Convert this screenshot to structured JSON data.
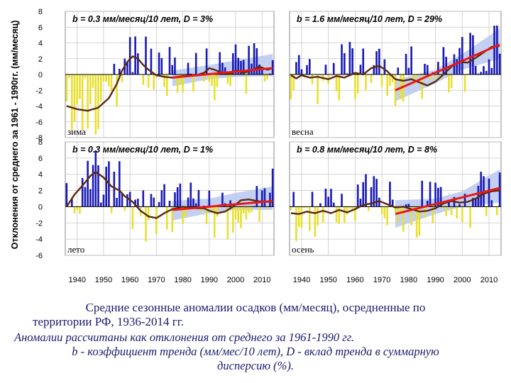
{
  "y_axis_label": "Отклонения от среднего за 1961 - 1990гг. (мм/месяц)",
  "colors": {
    "positive_bar": "#1a1ab4",
    "negative_bar": "#e8e030",
    "smooth_line": "#5a2a10",
    "trend_line": "#e81818",
    "confidence_band": "#b8c8f0",
    "grid": "#c8c8c8",
    "label_text": "#1a1a6e"
  },
  "chart_data": [
    {
      "type": "bar",
      "panel": "зима",
      "title": "b = 0.3 мм/месяц/10 лет, D = 3%",
      "season_label": "зима",
      "x_range": [
        1936,
        2014
      ],
      "ylim": [
        -8,
        8
      ],
      "yticks": [
        8,
        6,
        4,
        2,
        0,
        -2,
        -4,
        -6,
        -8
      ],
      "show_yticks": true,
      "xticks": [
        1940,
        1950,
        1960,
        1970,
        1980,
        1990,
        2000,
        2010
      ],
      "show_xticks": false,
      "smooth": [
        [
          1936,
          -4.0
        ],
        [
          1940,
          -4.4
        ],
        [
          1944,
          -4.6
        ],
        [
          1948,
          -4.2
        ],
        [
          1952,
          -3.0
        ],
        [
          1955,
          -1.2
        ],
        [
          1957,
          0.5
        ],
        [
          1959,
          1.6
        ],
        [
          1961,
          2.3
        ],
        [
          1963,
          2.0
        ],
        [
          1965,
          1.2
        ],
        [
          1967,
          0.6
        ],
        [
          1970,
          -0.1
        ],
        [
          1973,
          -0.3
        ],
        [
          1976,
          -0.4
        ],
        [
          1980,
          -0.2
        ],
        [
          1985,
          -0.1
        ],
        [
          1988,
          0.2
        ],
        [
          1990,
          0.8
        ],
        [
          1992,
          0.6
        ],
        [
          1995,
          0.2
        ],
        [
          1998,
          0.1
        ],
        [
          2000,
          0.5
        ],
        [
          2003,
          0.2
        ],
        [
          2006,
          0.5
        ],
        [
          2009,
          1.0
        ],
        [
          2012,
          0.6
        ],
        [
          2014,
          0.8
        ]
      ],
      "trend": [
        [
          1976,
          -0.4
        ],
        [
          2014,
          0.8
        ]
      ],
      "band": [
        [
          1976,
          -1.5,
          0.5
        ],
        [
          1990,
          -0.6,
          1.2
        ],
        [
          2000,
          -0.3,
          1.8
        ],
        [
          2014,
          -0.2,
          2.6
        ]
      ]
    },
    {
      "type": "bar",
      "panel": "весна",
      "title": "b = 1.6 мм/месяц/10 лет, D = 29%",
      "season_label": "весна",
      "x_range": [
        1936,
        2014
      ],
      "ylim": [
        -8,
        8
      ],
      "yticks": [
        8,
        6,
        4,
        2,
        0,
        -2,
        -4,
        -6,
        -8
      ],
      "show_yticks": false,
      "xticks": [
        1940,
        1950,
        1960,
        1970,
        1980,
        1990,
        2000,
        2010
      ],
      "show_xticks": false,
      "smooth": [
        [
          1936,
          -0.1
        ],
        [
          1938,
          -0.5
        ],
        [
          1940,
          -0.1
        ],
        [
          1943,
          -0.4
        ],
        [
          1946,
          -0.3
        ],
        [
          1950,
          -0.6
        ],
        [
          1953,
          -0.2
        ],
        [
          1956,
          -0.4
        ],
        [
          1960,
          0.2
        ],
        [
          1963,
          0.0
        ],
        [
          1966,
          0.8
        ],
        [
          1969,
          1.1
        ],
        [
          1972,
          0.4
        ],
        [
          1975,
          -0.6
        ],
        [
          1978,
          -0.8
        ],
        [
          1981,
          -0.6
        ],
        [
          1984,
          -1.0
        ],
        [
          1987,
          -1.4
        ],
        [
          1990,
          -0.9
        ],
        [
          1993,
          0.0
        ],
        [
          1996,
          1.0
        ],
        [
          1999,
          1.6
        ],
        [
          2002,
          1.5
        ],
        [
          2005,
          2.1
        ],
        [
          2008,
          2.8
        ],
        [
          2011,
          3.5
        ],
        [
          2014,
          3.6
        ]
      ],
      "trend": [
        [
          1975,
          -2.0
        ],
        [
          2014,
          3.8
        ]
      ],
      "band": [
        [
          1975,
          -3.4,
          -0.7
        ],
        [
          1990,
          -1.1,
          0.6
        ],
        [
          2000,
          0.6,
          2.6
        ],
        [
          2014,
          2.0,
          5.8
        ]
      ]
    },
    {
      "type": "bar",
      "panel": "лето",
      "title": "b = 0.3 мм/месяц/10 лет, D = 1%",
      "season_label": "лето",
      "x_range": [
        1936,
        2014
      ],
      "ylim": [
        -6,
        8
      ],
      "yticks": [
        8,
        6,
        4,
        2,
        0,
        -2,
        -4,
        -6
      ],
      "show_yticks": true,
      "xticks": [
        1940,
        1950,
        1960,
        1970,
        1980,
        1990,
        2000,
        2010
      ],
      "show_xticks": true,
      "smooth": [
        [
          1936,
          0.0
        ],
        [
          1939,
          1.5
        ],
        [
          1942,
          2.6
        ],
        [
          1945,
          3.8
        ],
        [
          1947,
          4.3
        ],
        [
          1950,
          3.6
        ],
        [
          1953,
          2.5
        ],
        [
          1956,
          2.0
        ],
        [
          1958,
          1.3
        ],
        [
          1961,
          0.6
        ],
        [
          1964,
          -0.5
        ],
        [
          1967,
          -1.2
        ],
        [
          1970,
          -1.4
        ],
        [
          1973,
          -0.8
        ],
        [
          1976,
          -0.3
        ],
        [
          1980,
          0.0
        ],
        [
          1985,
          -0.2
        ],
        [
          1988,
          -0.2
        ],
        [
          1990,
          -0.5
        ],
        [
          1993,
          -0.8
        ],
        [
          1996,
          -0.6
        ],
        [
          1999,
          0.0
        ],
        [
          2002,
          0.8
        ],
        [
          2005,
          0.9
        ],
        [
          2008,
          0.7
        ],
        [
          2011,
          0.6
        ],
        [
          2014,
          0.6
        ]
      ],
      "trend": [
        [
          1976,
          -0.4
        ],
        [
          2014,
          0.7
        ]
      ],
      "band": [
        [
          1976,
          -1.7,
          0.7
        ],
        [
          1990,
          -0.8,
          1.0
        ],
        [
          2000,
          -0.4,
          1.7
        ],
        [
          2014,
          -0.4,
          2.5
        ]
      ]
    },
    {
      "type": "bar",
      "panel": "осень",
      "title": "b = 0.8 мм/месяц/10 лет, D = 8%",
      "season_label": "осень",
      "x_range": [
        1936,
        2014
      ],
      "ylim": [
        -6,
        8
      ],
      "yticks": [
        8,
        6,
        4,
        2,
        0,
        -2,
        -4,
        -6
      ],
      "show_yticks": false,
      "xticks": [
        1940,
        1950,
        1960,
        1970,
        1980,
        1990,
        2000,
        2010
      ],
      "show_xticks": true,
      "smooth": [
        [
          1936,
          -0.8
        ],
        [
          1939,
          -0.9
        ],
        [
          1942,
          -0.6
        ],
        [
          1945,
          -0.8
        ],
        [
          1948,
          -0.5
        ],
        [
          1951,
          -0.8
        ],
        [
          1954,
          -0.4
        ],
        [
          1957,
          -0.7
        ],
        [
          1960,
          -0.3
        ],
        [
          1963,
          0.2
        ],
        [
          1966,
          0.4
        ],
        [
          1969,
          0.7
        ],
        [
          1972,
          0.3
        ],
        [
          1975,
          -0.1
        ],
        [
          1978,
          0.0
        ],
        [
          1981,
          -0.3
        ],
        [
          1984,
          -0.6
        ],
        [
          1987,
          -0.5
        ],
        [
          1990,
          -0.2
        ],
        [
          1993,
          0.4
        ],
        [
          1996,
          0.7
        ],
        [
          1999,
          0.5
        ],
        [
          2002,
          0.6
        ],
        [
          2005,
          1.0
        ],
        [
          2008,
          1.6
        ],
        [
          2011,
          1.9
        ],
        [
          2014,
          2.0
        ]
      ],
      "trend": [
        [
          1975,
          -0.9
        ],
        [
          2014,
          2.3
        ]
      ],
      "band": [
        [
          1975,
          -2.6,
          0.8
        ],
        [
          1990,
          -0.9,
          1.0
        ],
        [
          2000,
          0.0,
          1.9
        ],
        [
          2014,
          0.5,
          4.6
        ]
      ]
    }
  ],
  "caption": {
    "line1": "Средние сезонные аномалии осадков (мм/месяц), осредненные по",
    "line2": "территории РФ, 1936-2014 гг.",
    "line3": "Аномалии рассчитаны как отклонения от среднего за 1961-1990 гг.",
    "line4": "b - коэффициент тренда (мм/мес/10 лет), D - вклад тренда в суммарную",
    "line5": "дисперсию (%)."
  }
}
